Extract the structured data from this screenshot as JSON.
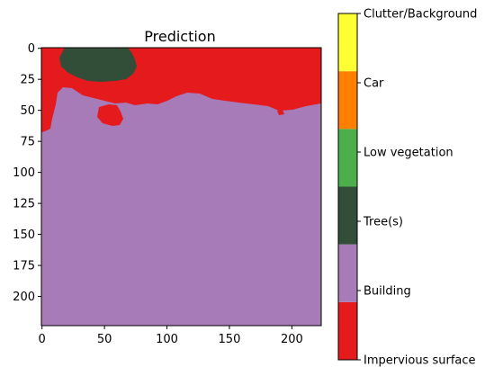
{
  "chart_data": {
    "type": "heatmap",
    "title": "Prediction",
    "xlabel": "",
    "ylabel": "",
    "image_size": [
      224,
      224
    ],
    "xlim": [
      -0.5,
      223.5
    ],
    "ylim": [
      223.5,
      -0.5
    ],
    "x_ticks": [
      0,
      50,
      100,
      150,
      200
    ],
    "y_ticks": [
      0,
      25,
      50,
      75,
      100,
      125,
      150,
      175,
      200
    ],
    "classes": [
      {
        "label": "Impervious surface",
        "color": "#e41a1c"
      },
      {
        "label": "Building",
        "color": "#a77bb8"
      },
      {
        "label": "Tree(s)",
        "color": "#324e39"
      },
      {
        "label": "Low vegetation",
        "color": "#4caf4c"
      },
      {
        "label": "Car",
        "color": "#ff7f00"
      },
      {
        "label": "Clutter/Background",
        "color": "#ffff33"
      }
    ],
    "regions": {
      "impervious_top_band": {
        "class": "Impervious surface",
        "x_range": [
          0,
          223
        ],
        "y_range": [
          0,
          45
        ]
      },
      "impervious_left_strip": {
        "class": "Impervious surface",
        "x_range": [
          0,
          22
        ],
        "y_range": [
          0,
          67
        ]
      },
      "impervious_patch_center": {
        "class": "Impervious surface",
        "x_range": [
          45,
          65
        ],
        "y_range": [
          45,
          60
        ]
      },
      "tree_cluster": {
        "class": "Tree(s)",
        "x_center": 50,
        "y_center": 12,
        "x_range": [
          15,
          80
        ],
        "y_range": [
          0,
          30
        ]
      },
      "building_remainder": {
        "class": "Building",
        "x_range": [
          0,
          223
        ],
        "y_range": [
          40,
          223
        ]
      }
    }
  }
}
